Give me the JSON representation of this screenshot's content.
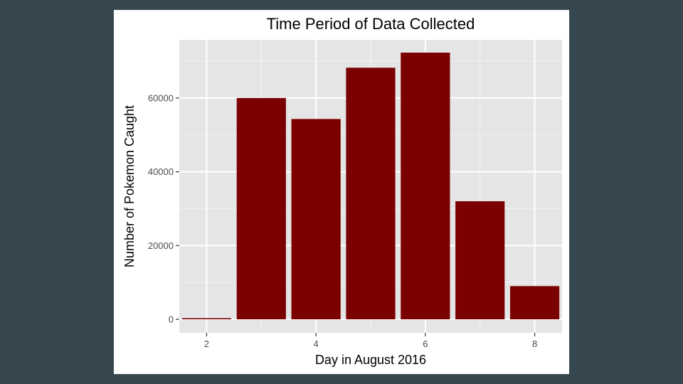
{
  "chart_data": {
    "type": "bar",
    "title": "Time Period of Data Collected",
    "xlabel": "Day in August 2016",
    "ylabel": "Number of Pokemon Caught",
    "x": [
      2,
      3,
      4,
      5,
      6,
      7,
      8
    ],
    "values": [
      300,
      60000,
      54300,
      68200,
      72300,
      32000,
      9000
    ],
    "xlim": [
      1.5,
      8.5
    ],
    "ylim": [
      0,
      72300
    ],
    "x_ticks": [
      2,
      4,
      6,
      8
    ],
    "x_tick_labels": [
      "2",
      "4",
      "6",
      "8"
    ],
    "y_ticks": [
      0,
      20000,
      40000,
      60000
    ],
    "y_tick_labels": [
      "0",
      "20000",
      "40000",
      "60000"
    ],
    "grid": true,
    "legend": "none",
    "colors": {
      "bar": "#7b0000",
      "panel": "#e5e5e5",
      "grid_major": "#ffffff",
      "grid_minor": "#f2f2f2",
      "background": "#37474f"
    }
  }
}
